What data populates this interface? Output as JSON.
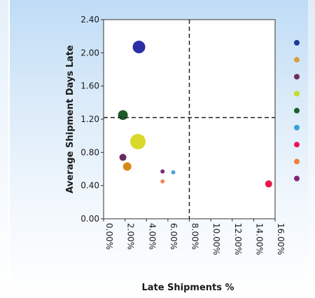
{
  "chart_data": {
    "type": "scatter",
    "title": "",
    "xlabel": "Late Shipments %",
    "ylabel": "Average Shipment Days Late",
    "xlim": [
      0,
      0.16
    ],
    "ylim": [
      0,
      2.4
    ],
    "x_ticks": [
      0,
      0.02,
      0.04,
      0.06,
      0.08,
      0.1,
      0.12,
      0.14,
      0.16
    ],
    "x_tick_labels": [
      "0.00%",
      "2.00%",
      "4.00%",
      "6.00%",
      "8.00%",
      "10.00%",
      "12.00%",
      "14.00%",
      "16.00%"
    ],
    "y_ticks": [
      0,
      0.4,
      0.8,
      1.2,
      1.6,
      2.0,
      2.4
    ],
    "y_tick_labels": [
      "0.00",
      "0.40",
      "0.80",
      "1.20",
      "1.60",
      "2.00",
      "2.40"
    ],
    "reference_lines": {
      "x": 0.08,
      "y": 1.22
    },
    "grid": false,
    "legend_position": "right",
    "points": [
      {
        "x": 0.033,
        "y": 2.07,
        "size": 9,
        "color": "#2b2fa3"
      },
      {
        "x": 0.018,
        "y": 1.25,
        "size": 7,
        "color": "#1f5a2a"
      },
      {
        "x": 0.032,
        "y": 0.93,
        "size": 11,
        "color": "#d9d92b"
      },
      {
        "x": 0.018,
        "y": 0.74,
        "size": 5,
        "color": "#6a2a5e"
      },
      {
        "x": 0.022,
        "y": 0.63,
        "size": 6,
        "color": "#d6891b"
      },
      {
        "x": 0.055,
        "y": 0.57,
        "size": 3,
        "color": "#7a2a7a"
      },
      {
        "x": 0.065,
        "y": 0.56,
        "size": 3,
        "color": "#4fa3d9"
      },
      {
        "x": 0.055,
        "y": 0.45,
        "size": 3,
        "color": "#f08a5d"
      },
      {
        "x": 0.154,
        "y": 0.42,
        "size": 5,
        "color": "#e8184f"
      }
    ],
    "legend_markers": [
      "#1f3a93",
      "#d6a13b",
      "#6b2d5e",
      "#c4df26",
      "#1d5e2b",
      "#39a0dd",
      "#ea1556",
      "#f0813e",
      "#82247a"
    ]
  }
}
